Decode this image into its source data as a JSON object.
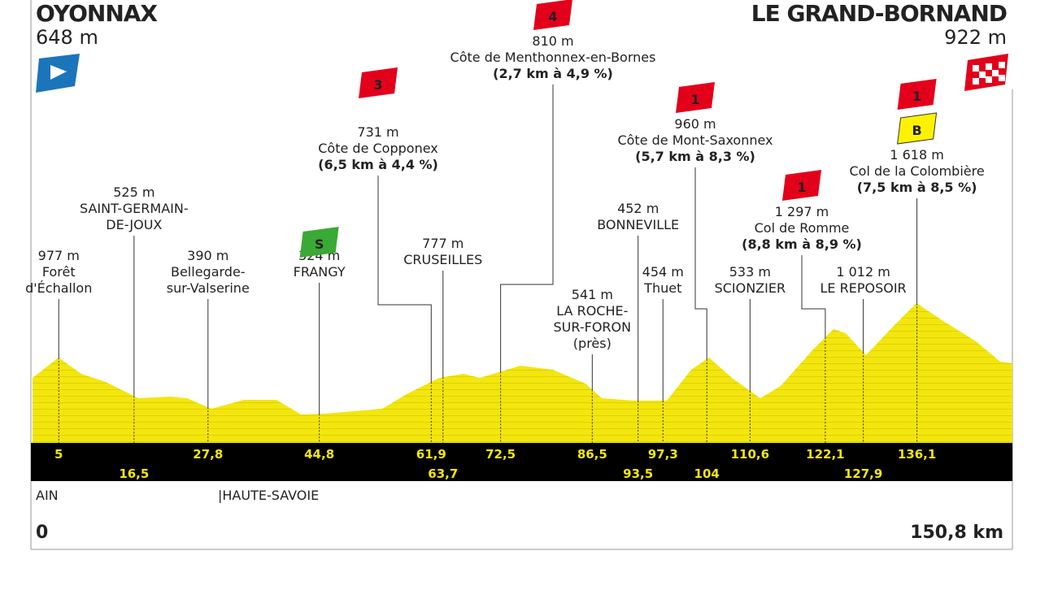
{
  "start": {
    "name": "OYONNAX",
    "altitude": "648 m"
  },
  "finish": {
    "name": "LE GRAND-BORNAND",
    "altitude": "922 m"
  },
  "points": [
    {
      "lines": [
        "977 m",
        "Forêt",
        "d'Échallon"
      ],
      "km": "5"
    },
    {
      "lines": [
        "525 m",
        "SAINT-GERMAIN-",
        "DE-JOUX"
      ],
      "km": "16,5"
    },
    {
      "lines": [
        "390 m",
        "Bellegarde-",
        "sur-Valserine"
      ],
      "km": "27,8"
    },
    {
      "lines": [
        "324 m",
        "FRANGY"
      ],
      "km": "44,8",
      "badges": [
        "S"
      ]
    },
    {
      "lines": [
        "731 m",
        "Côte de Copponex"
      ],
      "bold": "(6,5 km à 4,4 %)",
      "km": "61,9",
      "badges": [
        "3"
      ]
    },
    {
      "lines": [
        "777 m",
        "CRUSEILLES"
      ],
      "km": "63,7"
    },
    {
      "lines": [
        "810 m",
        "Côte de Menthonnex-en-Bornes"
      ],
      "bold": "(2,7 km à 4,9 %)",
      "km": "72,5",
      "badges": [
        "4"
      ]
    },
    {
      "lines": [
        "541 m",
        "LA ROCHE-",
        "SUR-FORON",
        "(près)"
      ],
      "km": "86,5"
    },
    {
      "lines": [
        "452 m",
        "BONNEVILLE"
      ],
      "km": "93,5"
    },
    {
      "lines": [
        "454 m",
        "Thuet"
      ],
      "km": "97,3"
    },
    {
      "lines": [
        "960 m",
        "Côte de Mont-Saxonnex"
      ],
      "bold": "(5,7 km à 8,3 %)",
      "km": "104",
      "badges": [
        "1"
      ]
    },
    {
      "lines": [
        "533 m",
        "SCIONZIER"
      ],
      "km": "110,6"
    },
    {
      "lines": [
        "1 297 m",
        "Col de Romme"
      ],
      "bold": "(8,8 km à 8,9 %)",
      "km": "122,1",
      "badges": [
        "1"
      ]
    },
    {
      "lines": [
        "1 012 m",
        "LE REPOSOIR"
      ],
      "km": "127,9"
    },
    {
      "lines": [
        "1 618 m",
        "Col de la Colombière"
      ],
      "bold": "(7,5 km à 8,5 %)",
      "km": "136,1",
      "badges": [
        "1",
        "B"
      ]
    }
  ],
  "regions": [
    "AIN",
    "|HAUTE-SAVOIE"
  ],
  "distance": {
    "start": "0",
    "end": "150,8 km"
  }
}
